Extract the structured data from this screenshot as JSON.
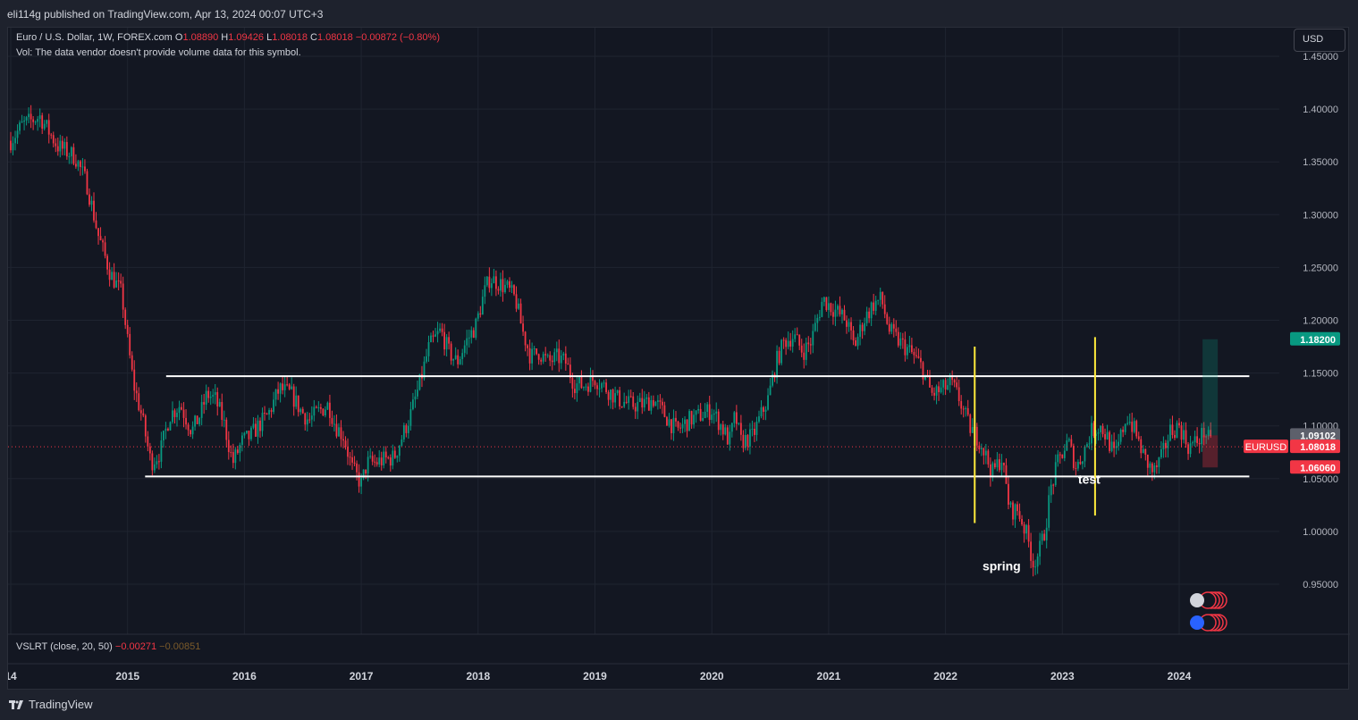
{
  "header": {
    "publisher": "eli114g published on TradingView.com, Apr 13, 2024 00:07 UTC+3"
  },
  "legend": {
    "symbol": "Euro / U.S. Dollar, 1W, FOREX.com",
    "o_label": "O",
    "o_value": "1.08890",
    "h_label": "H",
    "h_value": "1.09426",
    "l_label": "L",
    "l_value": "1.08018",
    "c_label": "C",
    "c_value": "1.08018",
    "change": "−0.00872 (−0.80%)",
    "vol_note": "Vol: The data vendor doesn't provide volume data for this symbol."
  },
  "indicator": {
    "label": "VSLRT (close, 20, 50)",
    "value1": "−0.00271",
    "value2": "−0.00851"
  },
  "currency_button": "USD",
  "footer": {
    "brand": "TradingView"
  },
  "chart_data": {
    "type": "candlestick",
    "symbol": "EURUSD",
    "timeframe": "1W",
    "y_axis": {
      "ticks": [
        "1.45000",
        "1.40000",
        "1.35000",
        "1.30000",
        "1.25000",
        "1.20000",
        "1.15000",
        "1.10000",
        "1.05000",
        "1.00000",
        "0.95000"
      ],
      "range": [
        0.93,
        1.45
      ]
    },
    "x_axis": {
      "ticks": [
        "14",
        "2015",
        "2016",
        "2017",
        "2018",
        "2019",
        "2020",
        "2021",
        "2022",
        "2023",
        "2024"
      ],
      "range": [
        2014.0,
        2025.0
      ]
    },
    "price_path": [
      [
        2014.0,
        1.37
      ],
      [
        2014.1,
        1.385
      ],
      [
        2014.25,
        1.393
      ],
      [
        2014.4,
        1.365
      ],
      [
        2014.55,
        1.355
      ],
      [
        2014.65,
        1.33
      ],
      [
        2014.75,
        1.28
      ],
      [
        2014.85,
        1.245
      ],
      [
        2014.95,
        1.225
      ],
      [
        2015.0,
        1.18
      ],
      [
        2015.05,
        1.14
      ],
      [
        2015.12,
        1.11
      ],
      [
        2015.2,
        1.065
      ],
      [
        2015.28,
        1.075
      ],
      [
        2015.36,
        1.11
      ],
      [
        2015.45,
        1.12
      ],
      [
        2015.55,
        1.095
      ],
      [
        2015.62,
        1.11
      ],
      [
        2015.68,
        1.13
      ],
      [
        2015.75,
        1.125
      ],
      [
        2015.82,
        1.105
      ],
      [
        2015.9,
        1.065
      ],
      [
        2015.98,
        1.085
      ],
      [
        2016.05,
        1.09
      ],
      [
        2016.12,
        1.1
      ],
      [
        2016.2,
        1.11
      ],
      [
        2016.3,
        1.135
      ],
      [
        2016.4,
        1.13
      ],
      [
        2016.48,
        1.115
      ],
      [
        2016.55,
        1.105
      ],
      [
        2016.65,
        1.115
      ],
      [
        2016.72,
        1.12
      ],
      [
        2016.78,
        1.1
      ],
      [
        2016.85,
        1.09
      ],
      [
        2016.92,
        1.06
      ],
      [
        2017.0,
        1.045
      ],
      [
        2017.05,
        1.065
      ],
      [
        2017.12,
        1.065
      ],
      [
        2017.2,
        1.068
      ],
      [
        2017.28,
        1.07
      ],
      [
        2017.35,
        1.09
      ],
      [
        2017.42,
        1.11
      ],
      [
        2017.5,
        1.14
      ],
      [
        2017.58,
        1.175
      ],
      [
        2017.68,
        1.19
      ],
      [
        2017.75,
        1.17
      ],
      [
        2017.82,
        1.16
      ],
      [
        2017.9,
        1.18
      ],
      [
        2017.98,
        1.195
      ],
      [
        2018.05,
        1.225
      ],
      [
        2018.1,
        1.24
      ],
      [
        2018.18,
        1.235
      ],
      [
        2018.25,
        1.23
      ],
      [
        2018.32,
        1.22
      ],
      [
        2018.38,
        1.19
      ],
      [
        2018.45,
        1.165
      ],
      [
        2018.52,
        1.17
      ],
      [
        2018.6,
        1.16
      ],
      [
        2018.68,
        1.165
      ],
      [
        2018.75,
        1.16
      ],
      [
        2018.82,
        1.14
      ],
      [
        2018.9,
        1.138
      ],
      [
        2019.0,
        1.145
      ],
      [
        2019.1,
        1.135
      ],
      [
        2019.2,
        1.125
      ],
      [
        2019.3,
        1.12
      ],
      [
        2019.4,
        1.12
      ],
      [
        2019.5,
        1.125
      ],
      [
        2019.6,
        1.11
      ],
      [
        2019.7,
        1.095
      ],
      [
        2019.8,
        1.105
      ],
      [
        2019.9,
        1.11
      ],
      [
        2020.0,
        1.115
      ],
      [
        2020.08,
        1.1
      ],
      [
        2020.15,
        1.085
      ],
      [
        2020.2,
        1.11
      ],
      [
        2020.25,
        1.085
      ],
      [
        2020.35,
        1.09
      ],
      [
        2020.42,
        1.11
      ],
      [
        2020.48,
        1.125
      ],
      [
        2020.55,
        1.16
      ],
      [
        2020.62,
        1.18
      ],
      [
        2020.7,
        1.185
      ],
      [
        2020.78,
        1.17
      ],
      [
        2020.85,
        1.18
      ],
      [
        2020.95,
        1.22
      ],
      [
        2021.05,
        1.21
      ],
      [
        2021.15,
        1.2
      ],
      [
        2021.22,
        1.175
      ],
      [
        2021.3,
        1.2
      ],
      [
        2021.38,
        1.215
      ],
      [
        2021.45,
        1.22
      ],
      [
        2021.52,
        1.19
      ],
      [
        2021.6,
        1.18
      ],
      [
        2021.7,
        1.17
      ],
      [
        2021.8,
        1.155
      ],
      [
        2021.88,
        1.13
      ],
      [
        2021.95,
        1.133
      ],
      [
        2022.05,
        1.14
      ],
      [
        2022.12,
        1.125
      ],
      [
        2022.2,
        1.1
      ],
      [
        2022.3,
        1.085
      ],
      [
        2022.4,
        1.055
      ],
      [
        2022.48,
        1.07
      ],
      [
        2022.55,
        1.02
      ],
      [
        2022.62,
        1.02
      ],
      [
        2022.7,
        0.995
      ],
      [
        2022.75,
        0.97
      ],
      [
        2022.8,
        0.98
      ],
      [
        2022.85,
        1.0
      ],
      [
        2022.9,
        1.04
      ],
      [
        2022.97,
        1.068
      ],
      [
        2023.05,
        1.085
      ],
      [
        2023.12,
        1.06
      ],
      [
        2023.18,
        1.075
      ],
      [
        2023.25,
        1.095
      ],
      [
        2023.32,
        1.1
      ],
      [
        2023.38,
        1.09
      ],
      [
        2023.45,
        1.07
      ],
      [
        2023.5,
        1.09
      ],
      [
        2023.55,
        1.11
      ],
      [
        2023.62,
        1.095
      ],
      [
        2023.7,
        1.07
      ],
      [
        2023.78,
        1.055
      ],
      [
        2023.85,
        1.07
      ],
      [
        2023.92,
        1.095
      ],
      [
        2024.0,
        1.1
      ],
      [
        2024.08,
        1.08
      ],
      [
        2024.15,
        1.085
      ],
      [
        2024.22,
        1.095
      ],
      [
        2024.28,
        1.08
      ]
    ],
    "horizontal_lines": [
      1.147,
      1.052
    ],
    "vertical_markers": [
      2022.25,
      2023.28
    ],
    "annotations": [
      {
        "text": "spring",
        "x": 2022.48,
        "price": 0.963
      },
      {
        "text": "test",
        "x": 2023.23,
        "price": 1.045
      }
    ],
    "price_labels": [
      {
        "text": "1.18200",
        "price": 1.182,
        "color": "#089981"
      },
      {
        "text": "1.09102",
        "price": 1.091,
        "color": "#5d606b"
      },
      {
        "symbol": "EURUSD",
        "text": "1.08018",
        "price": 1.0802,
        "color": "#f23645"
      },
      {
        "text": "1.06060",
        "price": 1.0606,
        "color": "#f23645"
      }
    ],
    "position": {
      "x_start": 2024.2,
      "x_end": 2024.33,
      "entry": 1.091,
      "target": 1.182,
      "stop": 1.0606
    },
    "colors": {
      "up": "#089981",
      "down": "#f23645",
      "level": "#ffffff",
      "marker": "#ffeb3b"
    }
  }
}
